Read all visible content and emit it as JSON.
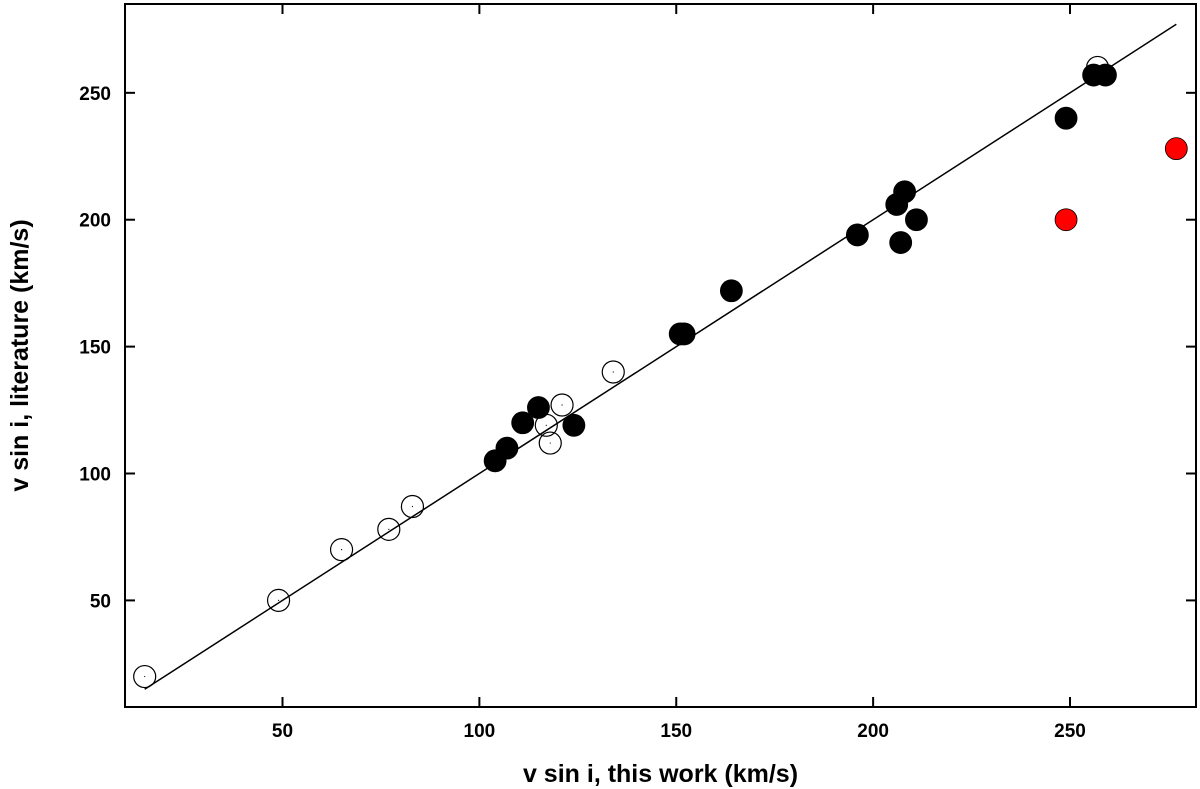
{
  "chart_data": {
    "type": "scatter",
    "title": "",
    "xlabel": "v sin i, this work (km/s)",
    "ylabel": "v sin i, literature (km/s)",
    "xlim": [
      10,
      282
    ],
    "ylim": [
      8,
      285
    ],
    "xticks": [
      50,
      100,
      150,
      200,
      250
    ],
    "yticks": [
      50,
      100,
      150,
      200,
      250
    ],
    "grid": false,
    "legend": "none",
    "reference_line": {
      "x": [
        15,
        277
      ],
      "y": [
        15,
        277
      ],
      "color": "#000000"
    },
    "series": [
      {
        "marker": "open-circle",
        "color": "#000000",
        "points": [
          [
            15,
            20
          ],
          [
            49,
            50
          ],
          [
            65,
            70
          ],
          [
            77,
            78
          ],
          [
            83,
            87
          ],
          [
            117,
            119
          ],
          [
            118,
            112
          ],
          [
            121,
            127
          ],
          [
            134,
            140
          ],
          [
            257,
            260
          ]
        ]
      },
      {
        "marker": "filled-circle",
        "color": "#000000",
        "points": [
          [
            104,
            105
          ],
          [
            107,
            110
          ],
          [
            111,
            120
          ],
          [
            115,
            126
          ],
          [
            124,
            119
          ],
          [
            151,
            155
          ],
          [
            152,
            155
          ],
          [
            164,
            172
          ],
          [
            196,
            194
          ],
          [
            206,
            206
          ],
          [
            207,
            191
          ],
          [
            208,
            211
          ],
          [
            211,
            200
          ],
          [
            249,
            240
          ],
          [
            256,
            257
          ],
          [
            259,
            257
          ]
        ]
      },
      {
        "marker": "filled-circle",
        "color": "#ff0000",
        "points": [
          [
            249,
            200
          ],
          [
            277,
            228
          ]
        ]
      }
    ]
  }
}
